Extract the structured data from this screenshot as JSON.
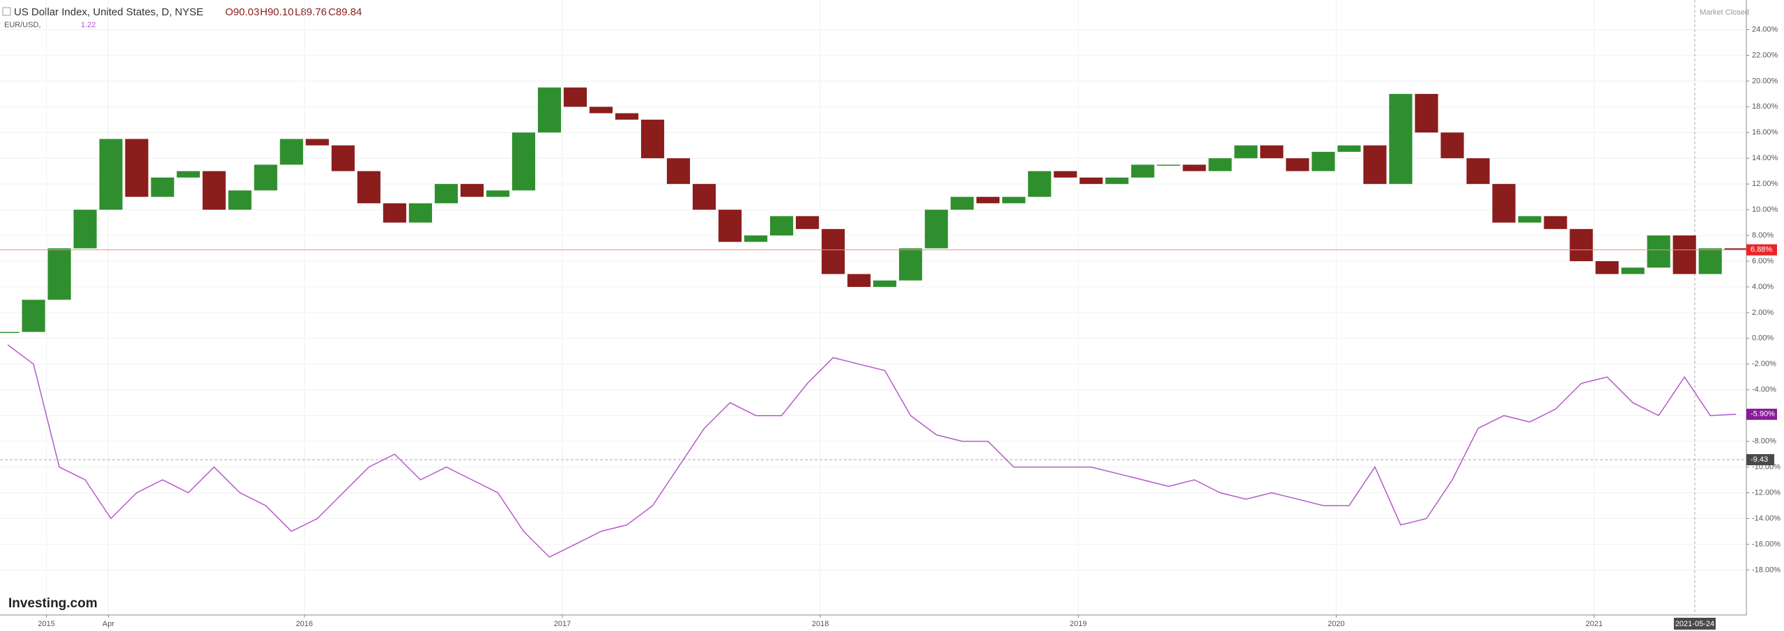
{
  "chart_data": {
    "type": "candlestick-line",
    "title": "US Dollar Index, United States, D, NYSE",
    "ohlc": [
      "O90.03",
      "H90.10",
      "L89.76",
      "C89.84"
    ],
    "compare_label": "EUR/USD,",
    "compare_value": "1.22",
    "status": "Market Closed",
    "watermark": "Investing.com",
    "x": [
      2014.85,
      2014.95,
      2015.05,
      2015.15,
      2015.25,
      2015.35,
      2015.45,
      2015.55,
      2015.65,
      2015.75,
      2015.85,
      2015.95,
      2016.05,
      2016.15,
      2016.25,
      2016.35,
      2016.45,
      2016.55,
      2016.65,
      2016.75,
      2016.85,
      2016.95,
      2017.05,
      2017.15,
      2017.25,
      2017.35,
      2017.45,
      2017.55,
      2017.65,
      2017.75,
      2017.85,
      2017.95,
      2018.05,
      2018.15,
      2018.25,
      2018.35,
      2018.45,
      2018.55,
      2018.65,
      2018.75,
      2018.85,
      2018.95,
      2019.05,
      2019.15,
      2019.25,
      2019.35,
      2019.45,
      2019.55,
      2019.65,
      2019.75,
      2019.85,
      2019.95,
      2020.05,
      2020.15,
      2020.25,
      2020.35,
      2020.45,
      2020.55,
      2020.65,
      2020.75,
      2020.85,
      2020.95,
      2021.05,
      2021.15,
      2021.25,
      2021.35,
      2021.45,
      2021.55
    ],
    "series": [
      {
        "name": "US Dollar Index",
        "style": "candle",
        "up_color": "#2f8f2f",
        "down_color": "#8b1d1d",
        "values": [
          0.5,
          3,
          7,
          10,
          15.5,
          11,
          12.5,
          13,
          10,
          11.5,
          13.5,
          15.5,
          15,
          13,
          10.5,
          9,
          10.5,
          12,
          11,
          11.5,
          16,
          19.5,
          18,
          17.5,
          17,
          14,
          12,
          10,
          7.5,
          8,
          9.5,
          8.5,
          5,
          4,
          4.5,
          7,
          10,
          11,
          10.5,
          11,
          13,
          12.5,
          12,
          12.5,
          13.5,
          13.5,
          13,
          14,
          15,
          14,
          13,
          14.5,
          15,
          12,
          19,
          16,
          14,
          12,
          9,
          9.5,
          8.5,
          6,
          5,
          5.5,
          8,
          5,
          7,
          6.88
        ],
        "last_label": "6.88%",
        "last_color": "#e8262a"
      },
      {
        "name": "EUR/USD",
        "style": "line",
        "color": "#b35ac8",
        "values": [
          -0.5,
          -2,
          -10,
          -11,
          -14,
          -12,
          -11,
          -12,
          -10,
          -12,
          -13,
          -15,
          -14,
          -12,
          -10,
          -9,
          -11,
          -10,
          -11,
          -12,
          -15,
          -17,
          -16,
          -15,
          -14.5,
          -13,
          -10,
          -7,
          -5,
          -6,
          -6,
          -3.5,
          -1.5,
          -2,
          -2.5,
          -6,
          -7.5,
          -8,
          -8,
          -10,
          -10,
          -10,
          -10,
          -10.5,
          -11,
          -11.5,
          -11,
          -12,
          -12.5,
          -12,
          -12.5,
          -13,
          -13,
          -10,
          -14.5,
          -14,
          -11,
          -7,
          -6,
          -6.5,
          -5.5,
          -3.5,
          -3,
          -5,
          -6,
          -3,
          -6,
          -5.9
        ],
        "last_label": "-5.90%",
        "last_color": "#8a1a9b"
      }
    ],
    "xlim": [
      2014.82,
      2021.59
    ],
    "xticks": [
      {
        "value": 2015,
        "label": "2015"
      },
      {
        "value": 2015.24,
        "label": "Apr"
      },
      {
        "value": 2016,
        "label": "2016"
      },
      {
        "value": 2017,
        "label": "2017"
      },
      {
        "value": 2018,
        "label": "2018"
      },
      {
        "value": 2019,
        "label": "2019"
      },
      {
        "value": 2020,
        "label": "2020"
      },
      {
        "value": 2021,
        "label": "2021"
      }
    ],
    "ylim": [
      -21.5,
      26.3
    ],
    "yticks": [
      {
        "value": 24,
        "label": "24.00%"
      },
      {
        "value": 22,
        "label": "22.00%"
      },
      {
        "value": 20,
        "label": "20.00%"
      },
      {
        "value": 18,
        "label": "18.00%"
      },
      {
        "value": 16,
        "label": "16.00%"
      },
      {
        "value": 14,
        "label": "14.00%"
      },
      {
        "value": 12,
        "label": "12.00%"
      },
      {
        "value": 10,
        "label": "10.00%"
      },
      {
        "value": 8,
        "label": "8.00%"
      },
      {
        "value": 6,
        "label": "6.00%"
      },
      {
        "value": 4,
        "label": "4.00%"
      },
      {
        "value": 2,
        "label": "2.00%"
      },
      {
        "value": 0,
        "label": "0.00%"
      },
      {
        "value": -2,
        "label": "-2.00%"
      },
      {
        "value": -4,
        "label": "-4.00%"
      },
      {
        "value": -6,
        "label": "-6.00%"
      },
      {
        "value": -8,
        "label": "-8.00%"
      },
      {
        "value": -10,
        "label": "-10.00%"
      },
      {
        "value": -12,
        "label": "-12.00%"
      },
      {
        "value": -14,
        "label": "-14.00%"
      },
      {
        "value": -16,
        "label": "-16.00%"
      },
      {
        "value": -18,
        "label": "-18.00%"
      }
    ],
    "crosshair": {
      "x": {
        "value": 2021.39,
        "label": "2021-05-24"
      },
      "y": {
        "value": -9.43,
        "label": "-9.43"
      }
    },
    "grid": true
  }
}
